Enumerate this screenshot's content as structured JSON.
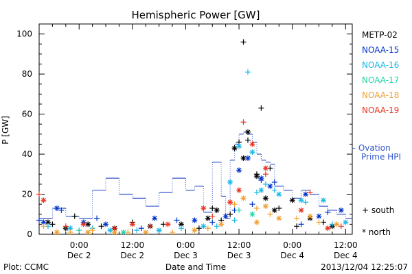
{
  "chart_data": {
    "type": "scatter",
    "title": "Hemispheric Power [GW]",
    "ylabel": "P [GW]",
    "xlabel": "Date and Time",
    "ylim": [
      0,
      105
    ],
    "xlim": [
      "2013-12-01T15:00",
      "2013-12-04T13:30"
    ],
    "y_ticks": [
      0,
      20,
      40,
      60,
      80,
      100
    ],
    "x_ticks": [
      {
        "t": "2013-12-02T00:00",
        "time": "0:00",
        "date": "Dec 2"
      },
      {
        "t": "2013-12-02T12:00",
        "time": "12:00",
        "date": "Dec 2"
      },
      {
        "t": "2013-12-03T00:00",
        "time": "0:00",
        "date": "Dec 3"
      },
      {
        "t": "2013-12-03T12:00",
        "time": "12:00",
        "date": "Dec 3"
      },
      {
        "t": "2013-12-04T00:00",
        "time": "0:00",
        "date": "Dec 4"
      },
      {
        "t": "2013-12-04T12:00",
        "time": "12:00",
        "date": "Dec 4"
      }
    ],
    "legend": {
      "satellites": [
        {
          "name": "METP-02",
          "color": "#000000"
        },
        {
          "name": "NOAA-15",
          "color": "#0033cc"
        },
        {
          "name": "NOAA-16",
          "color": "#17b8e6"
        },
        {
          "name": "NOAA-17",
          "color": "#1fd6a6"
        },
        {
          "name": "NOAA-18",
          "color": "#f0a030"
        },
        {
          "name": "NOAA-19",
          "color": "#e8321e"
        }
      ],
      "ovation_label_1": "– Ovation",
      "ovation_label_2": "Prime HPI",
      "south_label": "+ south",
      "north_label": "* north",
      "placement": "right"
    },
    "ovation_series": {
      "name": "Ovation Prime HPI",
      "color": "#3355cc",
      "t": [
        "2013-12-01T15:00",
        "2013-12-01T18:00",
        "2013-12-01T21:00",
        "2013-12-02T00:00",
        "2013-12-02T03:00",
        "2013-12-02T06:00",
        "2013-12-02T09:00",
        "2013-12-02T12:00",
        "2013-12-02T15:00",
        "2013-12-02T18:00",
        "2013-12-02T21:00",
        "2013-12-03T00:00",
        "2013-12-03T02:00",
        "2013-12-03T04:00",
        "2013-12-03T06:00",
        "2013-12-03T08:00",
        "2013-12-03T09:00",
        "2013-12-03T10:00",
        "2013-12-03T11:00",
        "2013-12-03T12:00",
        "2013-12-03T13:00",
        "2013-12-03T14:00",
        "2013-12-03T15:00",
        "2013-12-03T16:00",
        "2013-12-03T17:00",
        "2013-12-03T18:00",
        "2013-12-03T19:00",
        "2013-12-03T20:00",
        "2013-12-03T22:00",
        "2013-12-04T00:00",
        "2013-12-04T02:00",
        "2013-12-04T04:00",
        "2013-12-04T06:00",
        "2013-12-04T08:00",
        "2013-12-04T10:00",
        "2013-12-04T12:00",
        "2013-12-04T13:30"
      ],
      "values": [
        8,
        13,
        9,
        8,
        22,
        28,
        20,
        18,
        14,
        21,
        28,
        22,
        24,
        11,
        36,
        19,
        8,
        37,
        45,
        50,
        51,
        50,
        46,
        40,
        37,
        36,
        35,
        24,
        22,
        18,
        22,
        20,
        14,
        12,
        10,
        8,
        8
      ]
    },
    "series": [
      {
        "name": "METP-02",
        "color": "#000000",
        "south": {
          "t": [
            "2013-12-01T18:00",
            "2013-12-01T23:00",
            "2013-12-02T05:00",
            "2013-12-02T12:00",
            "2013-12-02T19:00",
            "2013-12-03T03:00",
            "2013-12-03T06:00",
            "2013-12-03T08:00",
            "2013-12-03T10:00",
            "2013-12-03T12:00",
            "2013-12-03T13:00",
            "2013-12-03T14:00",
            "2013-12-03T16:00",
            "2013-12-03T17:00",
            "2013-12-03T19:00",
            "2013-12-03T21:00",
            "2013-12-04T01:00",
            "2013-12-04T07:00"
          ],
          "values": [
            5,
            9,
            4,
            6,
            5,
            3,
            13,
            7,
            10,
            46,
            96,
            47,
            30,
            63,
            33,
            13,
            4,
            6
          ]
        },
        "north": {
          "t": [
            "2013-12-01T17:00",
            "2013-12-01T21:00",
            "2013-12-02T02:00",
            "2013-12-02T08:00",
            "2013-12-02T16:00",
            "2013-12-02T23:00",
            "2013-12-03T05:00",
            "2013-12-03T07:00",
            "2013-12-03T11:00",
            "2013-12-03T13:00",
            "2013-12-03T14:00",
            "2013-12-03T16:00",
            "2013-12-03T18:00",
            "2013-12-03T20:00",
            "2013-12-04T00:00",
            "2013-12-04T04:00",
            "2013-12-04T09:00"
          ],
          "values": [
            6,
            3,
            5,
            3,
            4,
            5,
            8,
            12,
            43,
            38,
            51,
            29,
            18,
            12,
            17,
            8,
            4
          ]
        }
      },
      {
        "name": "NOAA-15",
        "color": "#0033cc",
        "south": {
          "t": [
            "2013-12-01T15:00",
            "2013-12-01T20:00",
            "2013-12-02T04:00",
            "2013-12-02T14:00",
            "2013-12-02T22:00",
            "2013-12-03T06:00",
            "2013-12-03T11:00",
            "2013-12-03T15:00",
            "2013-12-03T17:00",
            "2013-12-03T20:00",
            "2013-12-04T02:00",
            "2013-12-04T08:00"
          ],
          "values": [
            7,
            12,
            8,
            3,
            7,
            6,
            12,
            15,
            27,
            26,
            5,
            11
          ]
        },
        "north": {
          "t": [
            "2013-12-01T16:00",
            "2013-12-01T19:00",
            "2013-12-02T01:00",
            "2013-12-02T06:00",
            "2013-12-02T17:00",
            "2013-12-03T02:00",
            "2013-12-03T09:00",
            "2013-12-03T12:00",
            "2013-12-03T14:00",
            "2013-12-03T17:00",
            "2013-12-03T19:00",
            "2013-12-04T03:00",
            "2013-12-04T06:00",
            "2013-12-04T11:00"
          ],
          "values": [
            6,
            13,
            6,
            5,
            8,
            7,
            9,
            32,
            38,
            28,
            24,
            20,
            9,
            12
          ]
        }
      },
      {
        "name": "NOAA-16",
        "color": "#17b8e6",
        "south": {
          "t": [
            "2013-12-01T17:00",
            "2013-12-02T03:00",
            "2013-12-02T13:00",
            "2013-12-02T23:00",
            "2013-12-03T07:00",
            "2013-12-03T11:00",
            "2013-12-03T14:00",
            "2013-12-03T16:00",
            "2013-12-03T18:00",
            "2013-12-03T20:00",
            "2013-12-04T03:00",
            "2013-12-04T09:00"
          ],
          "values": [
            4,
            3,
            2,
            3,
            4,
            7,
            81,
            21,
            25,
            22,
            16,
            5
          ]
        },
        "north": {
          "t": [
            "2013-12-01T22:00",
            "2013-12-02T07:00",
            "2013-12-02T18:00",
            "2013-12-03T04:00",
            "2013-12-03T10:00",
            "2013-12-03T12:00",
            "2013-12-03T15:00",
            "2013-12-03T17:00",
            "2013-12-03T21:00",
            "2013-12-04T02:00",
            "2013-12-04T07:00",
            "2013-12-04T12:00"
          ],
          "values": [
            3,
            2,
            2,
            4,
            26,
            44,
            41,
            22,
            20,
            17,
            17,
            6
          ]
        }
      },
      {
        "name": "NOAA-17",
        "color": "#1fd6a6",
        "south": {
          "t": [
            "2013-12-02T00:00",
            "2013-12-03T12:00"
          ],
          "values": [
            2,
            12
          ]
        },
        "north": {
          "t": [
            "2013-12-02T10:00",
            "2013-12-03T15:00"
          ],
          "values": [
            1,
            10
          ]
        }
      },
      {
        "name": "NOAA-18",
        "color": "#f0a030",
        "south": {
          "t": [
            "2013-12-01T16:00",
            "2013-12-01T22:00",
            "2013-12-02T03:00",
            "2013-12-02T11:00",
            "2013-12-02T21:00",
            "2013-12-03T05:00",
            "2013-12-03T11:00",
            "2013-12-03T16:00",
            "2013-12-03T19:00",
            "2013-12-04T01:00",
            "2013-12-04T06:00"
          ],
          "values": [
            4,
            1,
            2,
            1,
            1,
            3,
            15,
            13,
            10,
            8,
            6
          ]
        },
        "north": {
          "t": [
            "2013-12-01T19:00",
            "2013-12-02T02:00",
            "2013-12-02T08:00",
            "2013-12-02T15:00",
            "2013-12-03T02:00",
            "2013-12-03T08:00",
            "2013-12-03T13:00",
            "2013-12-03T16:00",
            "2013-12-03T18:00",
            "2013-12-03T21:00",
            "2013-12-04T04:00",
            "2013-12-04T10:00"
          ],
          "values": [
            1,
            1,
            1,
            1,
            2,
            5,
            18,
            6,
            14,
            8,
            9,
            5
          ]
        }
      },
      {
        "name": "NOAA-19",
        "color": "#e8321e",
        "south": {
          "t": [
            "2013-12-01T15:00",
            "2013-12-01T21:00",
            "2013-12-02T08:00",
            "2013-12-02T16:00",
            "2013-12-03T06:00",
            "2013-12-03T13:00",
            "2013-12-03T18:00",
            "2013-12-04T04:00",
            "2013-12-04T11:00"
          ],
          "values": [
            20,
            4,
            3,
            4,
            9,
            56,
            30,
            21,
            4
          ]
        },
        "north": {
          "t": [
            "2013-12-01T16:00",
            "2013-12-02T01:00",
            "2013-12-02T12:00",
            "2013-12-02T20:00",
            "2013-12-03T04:00",
            "2013-12-03T10:00",
            "2013-12-03T12:00",
            "2013-12-03T15:00",
            "2013-12-03T18:00",
            "2013-12-04T02:00",
            "2013-12-04T08:00"
          ],
          "values": [
            17,
            5,
            5,
            5,
            13,
            16,
            22,
            45,
            33,
            12,
            3
          ]
        }
      }
    ]
  },
  "footer": {
    "plot_credit": "Plot: CCMC",
    "timestamp": "2013/12/04 12:25:07"
  }
}
